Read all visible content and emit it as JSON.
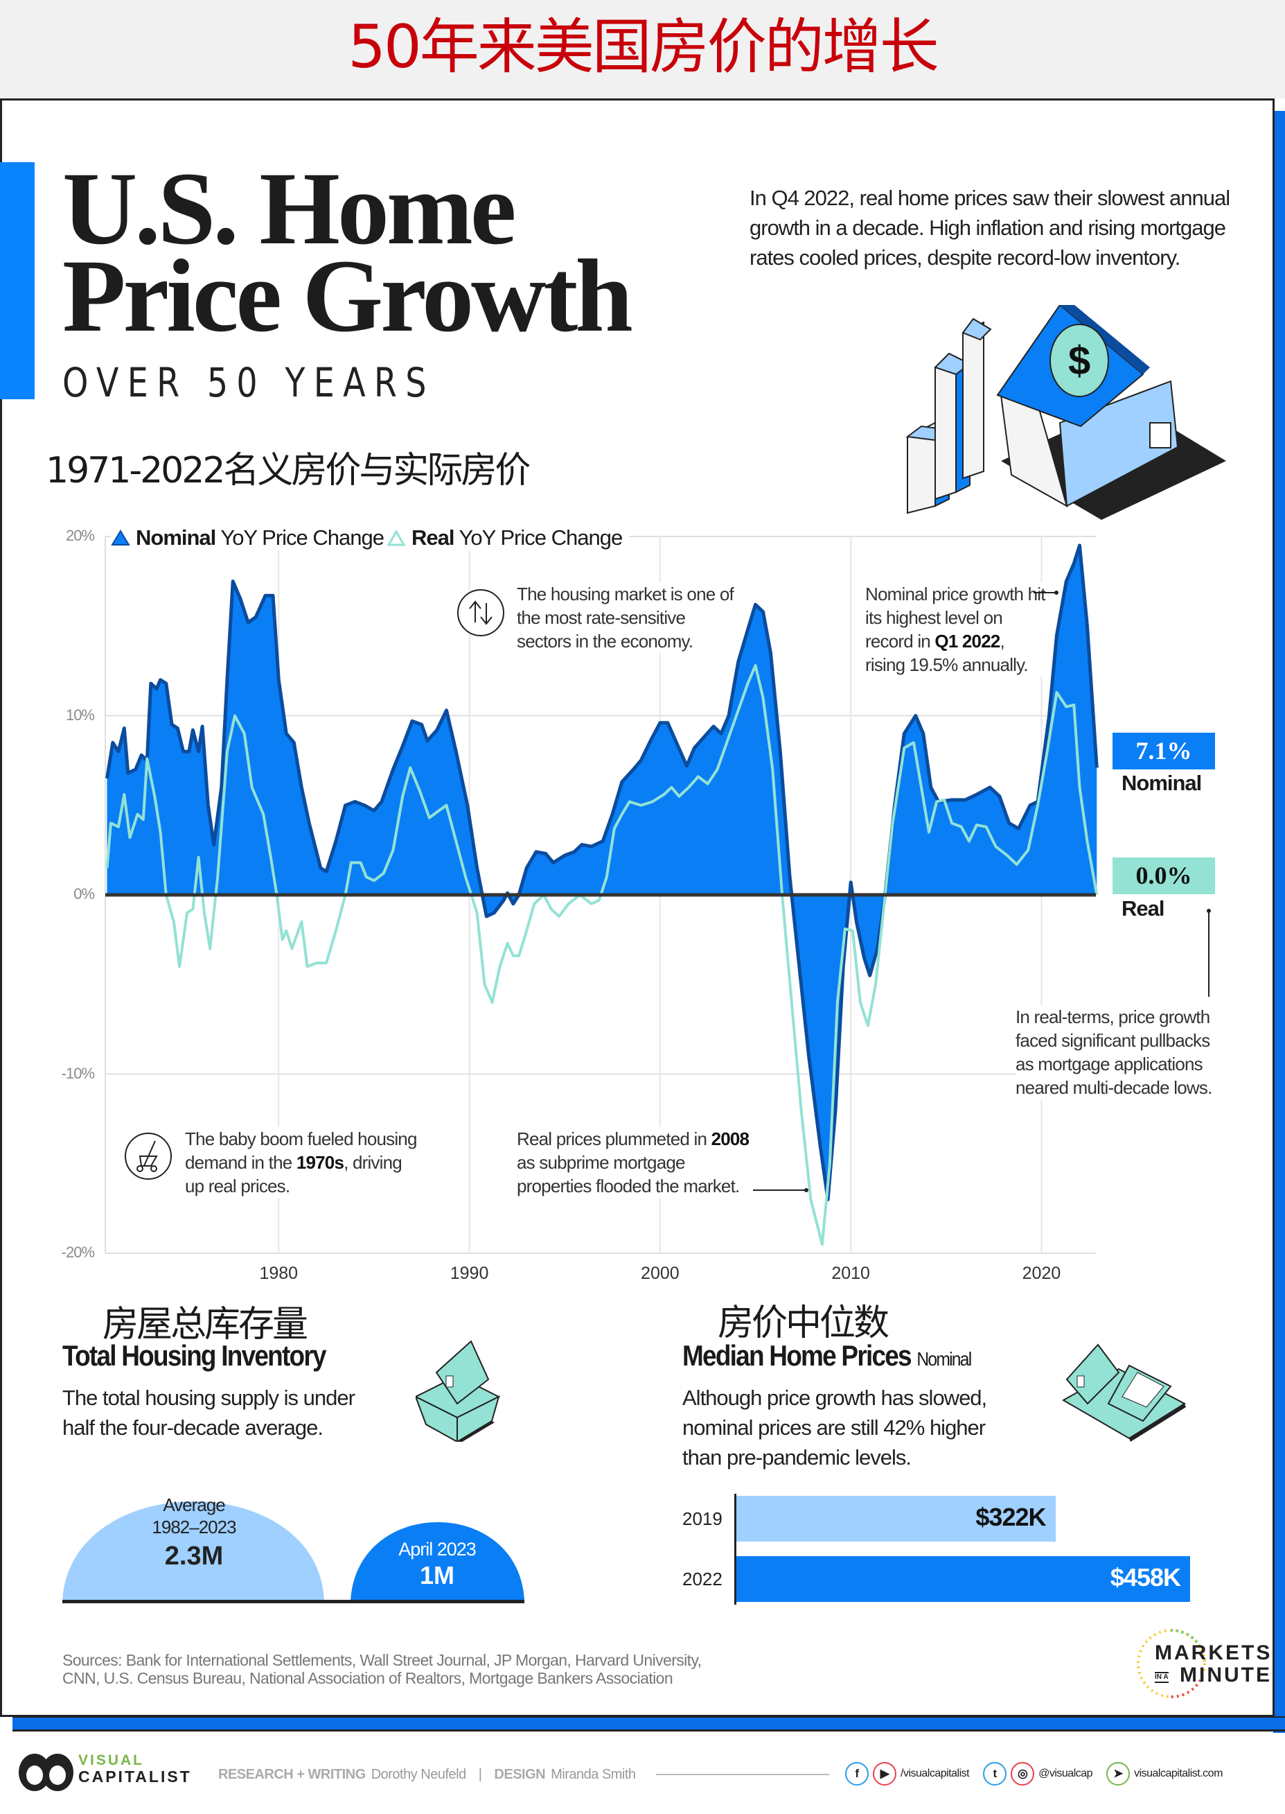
{
  "banner_title": "50年来美国房价的增长",
  "header": {
    "title_line1": "U.S. Home",
    "title_line2": "Price Growth",
    "subtitle": "OVER 50 YEARS",
    "chinese_subtitle": "1971-2022名义房价与实际房价",
    "intro": "In Q4 2022, real home prices saw their slowest annual growth in a decade. High inflation and rising mortgage rates cooled prices, despite record-low inventory."
  },
  "colors": {
    "nominal_fill": "#0a7ef5",
    "nominal_stroke": "#0b4c9e",
    "real": "#93e2d4",
    "accent": "#0a84ff",
    "banner_red": "#c8000a"
  },
  "chart_data": {
    "type": "area",
    "legend": [
      {
        "bold": "Nominal",
        "rest": "YoY Price Change"
      },
      {
        "bold": "Real",
        "rest": "YoY Price Change"
      }
    ],
    "legend_position": "top-left",
    "y_ticks": [
      "20%",
      "10%",
      "0%",
      "-10%",
      "-20%"
    ],
    "y_tick_values": [
      20,
      10,
      0,
      -10,
      -20
    ],
    "ylim": [
      -20,
      20
    ],
    "x_ticks": [
      "1980",
      "1990",
      "2000",
      "2010",
      "2020"
    ],
    "x_tick_values": [
      1980,
      1990,
      2000,
      2010,
      2020
    ],
    "xlim": [
      1971,
      2022.9
    ],
    "grid": true,
    "series": [
      {
        "name": "Nominal",
        "points": [
          [
            1971,
            6.5
          ],
          [
            1971.3,
            8.5
          ],
          [
            1971.6,
            8
          ],
          [
            1971.9,
            9.3
          ],
          [
            1972.1,
            6.8
          ],
          [
            1972.5,
            7
          ],
          [
            1972.8,
            7.8
          ],
          [
            1973.1,
            7.5
          ],
          [
            1973.3,
            11.8
          ],
          [
            1973.6,
            11.5
          ],
          [
            1973.8,
            12
          ],
          [
            1974.1,
            11.8
          ],
          [
            1974.4,
            9.5
          ],
          [
            1974.7,
            9.3
          ],
          [
            1975,
            8
          ],
          [
            1975.3,
            8
          ],
          [
            1975.5,
            9.2
          ],
          [
            1975.8,
            8
          ],
          [
            1976,
            9.4
          ],
          [
            1976.3,
            5
          ],
          [
            1976.6,
            2.8
          ],
          [
            1977,
            6
          ],
          [
            1977.3,
            12
          ],
          [
            1977.6,
            17.5
          ],
          [
            1978,
            16.5
          ],
          [
            1978.4,
            15.2
          ],
          [
            1978.8,
            15.5
          ],
          [
            1979.3,
            16.7
          ],
          [
            1979.7,
            16.7
          ],
          [
            1980,
            12
          ],
          [
            1980.4,
            9
          ],
          [
            1980.8,
            8.5
          ],
          [
            1981.2,
            6
          ],
          [
            1981.6,
            4
          ],
          [
            1982.2,
            1.5
          ],
          [
            1982.5,
            1.3
          ],
          [
            1983,
            3
          ],
          [
            1983.5,
            5
          ],
          [
            1984,
            5.2
          ],
          [
            1984.5,
            5
          ],
          [
            1985,
            4.7
          ],
          [
            1985.4,
            5.2
          ],
          [
            1986,
            7
          ],
          [
            1986.5,
            8.3
          ],
          [
            1987,
            9.7
          ],
          [
            1987.5,
            9.5
          ],
          [
            1987.8,
            8.6
          ],
          [
            1988.3,
            9.2
          ],
          [
            1988.8,
            10.3
          ],
          [
            1989.3,
            8
          ],
          [
            1989.9,
            5
          ],
          [
            1990.4,
            1.5
          ],
          [
            1990.9,
            -1.2
          ],
          [
            1991.3,
            -1
          ],
          [
            1991.8,
            -0.3
          ],
          [
            1992,
            0.1
          ],
          [
            1992.3,
            -0.5
          ],
          [
            1992.6,
            0
          ],
          [
            1993,
            1.5
          ],
          [
            1993.5,
            2.4
          ],
          [
            1994,
            2.3
          ],
          [
            1994.4,
            1.8
          ],
          [
            1995,
            2.2
          ],
          [
            1995.5,
            2.4
          ],
          [
            1995.9,
            2.8
          ],
          [
            1996.4,
            2.7
          ],
          [
            1997,
            3
          ],
          [
            1997.5,
            4.5
          ],
          [
            1998,
            6.3
          ],
          [
            1998.6,
            7
          ],
          [
            1999,
            7.5
          ],
          [
            1999.5,
            8.6
          ],
          [
            2000,
            9.6
          ],
          [
            2000.4,
            9.6
          ],
          [
            2000.9,
            8.4
          ],
          [
            2001.4,
            7.2
          ],
          [
            2001.8,
            8.2
          ],
          [
            2002.3,
            8.8
          ],
          [
            2002.8,
            9.4
          ],
          [
            2003.2,
            9
          ],
          [
            2003.6,
            10
          ],
          [
            2004.1,
            13
          ],
          [
            2004.6,
            14.8
          ],
          [
            2005,
            16.2
          ],
          [
            2005.4,
            15.8
          ],
          [
            2005.8,
            13.5
          ],
          [
            2006.3,
            8
          ],
          [
            2006.8,
            1
          ],
          [
            2007.3,
            -4
          ],
          [
            2007.8,
            -9
          ],
          [
            2008.4,
            -14
          ],
          [
            2008.8,
            -17
          ],
          [
            2009.2,
            -12
          ],
          [
            2009.6,
            -4
          ],
          [
            2010,
            0.7
          ],
          [
            2010.3,
            -1.5
          ],
          [
            2010.7,
            -3.5
          ],
          [
            2011,
            -4.5
          ],
          [
            2011.4,
            -3
          ],
          [
            2011.8,
            0
          ],
          [
            2012.3,
            5
          ],
          [
            2012.8,
            9
          ],
          [
            2013.4,
            10
          ],
          [
            2013.8,
            9
          ],
          [
            2014.2,
            6
          ],
          [
            2014.6,
            5.2
          ],
          [
            2015.3,
            5.3
          ],
          [
            2016,
            5.3
          ],
          [
            2016.6,
            5.6
          ],
          [
            2017.3,
            6
          ],
          [
            2017.8,
            5.5
          ],
          [
            2018.3,
            4
          ],
          [
            2018.8,
            3.7
          ],
          [
            2019.4,
            5
          ],
          [
            2019.8,
            5.2
          ],
          [
            2020.4,
            10
          ],
          [
            2020.8,
            14.5
          ],
          [
            2021.3,
            17.5
          ],
          [
            2021.7,
            18.5
          ],
          [
            2022,
            19.5
          ],
          [
            2022.4,
            15
          ],
          [
            2022.9,
            7.1
          ]
        ]
      },
      {
        "name": "Real",
        "points": [
          [
            1971,
            1.5
          ],
          [
            1971.2,
            4
          ],
          [
            1971.6,
            3.8
          ],
          [
            1971.9,
            5.6
          ],
          [
            1972.2,
            3.2
          ],
          [
            1972.6,
            4.5
          ],
          [
            1972.9,
            4.2
          ],
          [
            1973.1,
            7.6
          ],
          [
            1973.5,
            5.5
          ],
          [
            1973.8,
            3.5
          ],
          [
            1974.1,
            0
          ],
          [
            1974.5,
            -1.5
          ],
          [
            1974.8,
            -4
          ],
          [
            1975.2,
            -1
          ],
          [
            1975.5,
            -0.8
          ],
          [
            1975.8,
            2.1
          ],
          [
            1976.1,
            -1
          ],
          [
            1976.4,
            -3
          ],
          [
            1976.8,
            1
          ],
          [
            1977.3,
            8
          ],
          [
            1977.7,
            10
          ],
          [
            1978.2,
            9
          ],
          [
            1978.6,
            6
          ],
          [
            1979.2,
            4.5
          ],
          [
            1979.6,
            2
          ],
          [
            1979.9,
            0
          ],
          [
            1980.2,
            -2.5
          ],
          [
            1980.4,
            -2
          ],
          [
            1980.7,
            -3
          ],
          [
            1981.2,
            -1.5
          ],
          [
            1981.5,
            -4
          ],
          [
            1982,
            -3.8
          ],
          [
            1982.5,
            -3.8
          ],
          [
            1983,
            -2
          ],
          [
            1983.5,
            0
          ],
          [
            1983.8,
            1.8
          ],
          [
            1984.3,
            1.8
          ],
          [
            1984.6,
            1
          ],
          [
            1985,
            0.8
          ],
          [
            1985.5,
            1.2
          ],
          [
            1986,
            2.5
          ],
          [
            1986.5,
            5.5
          ],
          [
            1986.9,
            7.1
          ],
          [
            1987.4,
            5.8
          ],
          [
            1987.9,
            4.3
          ],
          [
            1988.4,
            4.7
          ],
          [
            1988.8,
            5
          ],
          [
            1989.3,
            3
          ],
          [
            1989.8,
            1
          ],
          [
            1990.4,
            -1
          ],
          [
            1990.8,
            -5
          ],
          [
            1991.2,
            -6
          ],
          [
            1991.6,
            -4
          ],
          [
            1992,
            -2.7
          ],
          [
            1992.3,
            -3.4
          ],
          [
            1992.6,
            -3.4
          ],
          [
            1993,
            -2
          ],
          [
            1993.4,
            -0.5
          ],
          [
            1993.9,
            0
          ],
          [
            1994.3,
            -0.8
          ],
          [
            1994.7,
            -1.2
          ],
          [
            1995.2,
            -0.5
          ],
          [
            1995.8,
            0
          ],
          [
            1996.4,
            -0.5
          ],
          [
            1996.8,
            -0.3
          ],
          [
            1997.2,
            1
          ],
          [
            1997.6,
            3.7
          ],
          [
            1998,
            4.5
          ],
          [
            1998.4,
            5.2
          ],
          [
            1999,
            5
          ],
          [
            1999.6,
            5.2
          ],
          [
            2000.2,
            5.6
          ],
          [
            2000.6,
            6
          ],
          [
            2001,
            5.5
          ],
          [
            2001.5,
            6
          ],
          [
            2002,
            6.6
          ],
          [
            2002.5,
            6.2
          ],
          [
            2003,
            7
          ],
          [
            2003.5,
            8.5
          ],
          [
            2004,
            10
          ],
          [
            2004.6,
            11.8
          ],
          [
            2005,
            12.8
          ],
          [
            2005.4,
            11
          ],
          [
            2005.9,
            7
          ],
          [
            2006.4,
            0
          ],
          [
            2006.9,
            -6
          ],
          [
            2007.4,
            -12
          ],
          [
            2007.9,
            -17
          ],
          [
            2008.5,
            -19.5
          ],
          [
            2008.9,
            -15
          ],
          [
            2009.3,
            -6
          ],
          [
            2009.7,
            -1.9
          ],
          [
            2010.1,
            -2
          ],
          [
            2010.5,
            -6
          ],
          [
            2010.9,
            -7.3
          ],
          [
            2011.3,
            -5
          ],
          [
            2011.7,
            -1
          ],
          [
            2012.2,
            4
          ],
          [
            2012.8,
            8.2
          ],
          [
            2013.3,
            8.5
          ],
          [
            2013.7,
            6
          ],
          [
            2014.1,
            3.5
          ],
          [
            2014.5,
            5.2
          ],
          [
            2014.9,
            5.3
          ],
          [
            2015.3,
            4
          ],
          [
            2015.8,
            3.8
          ],
          [
            2016.2,
            3
          ],
          [
            2016.6,
            3.9
          ],
          [
            2017.1,
            3.8
          ],
          [
            2017.6,
            2.7
          ],
          [
            2018.2,
            2.2
          ],
          [
            2018.7,
            1.7
          ],
          [
            2019.3,
            2.5
          ],
          [
            2019.8,
            5
          ],
          [
            2020.3,
            8
          ],
          [
            2020.8,
            11.3
          ],
          [
            2021.3,
            10.5
          ],
          [
            2021.7,
            10.6
          ],
          [
            2022,
            6
          ],
          [
            2022.4,
            3
          ],
          [
            2022.9,
            0
          ]
        ]
      }
    ],
    "end_labels": [
      {
        "value": "7.1%",
        "label": "Nominal"
      },
      {
        "value": "0.0%",
        "label": "Real"
      }
    ],
    "annotations": {
      "rate": "The housing market is one of the most rate-sensitive sectors in the economy.",
      "peak_pre": "Nominal price growth hit its highest level on record in ",
      "peak_bold": "Q1 2022",
      "peak_post": ", rising 19.5% annually.",
      "pullback": "In real-terms, price growth faced significant pullbacks as mortgage applications neared multi-decade lows.",
      "boom_pre": "The baby boom fueled housing demand in the ",
      "boom_bold": "1970s",
      "boom_post": ", driving up real prices.",
      "crash_pre": "Real prices plummeted in ",
      "crash_bold": "2008",
      "crash_post": " as subprime mortgage properties flooded the market."
    }
  },
  "inventory": {
    "title_cn": "房屋总库存量",
    "title": "Total Housing Inventory",
    "desc": "The total housing supply is under half the four-decade average.",
    "average_label": "Average",
    "average_range": "1982–2023",
    "average_value": "2.3M",
    "average_millions": 2.3,
    "current_label": "April 2023",
    "current_value": "1M",
    "current_millions": 1
  },
  "median": {
    "title_cn": "房价中位数",
    "title": "Median Home Prices",
    "title_note": "Nominal",
    "desc": "Although price growth has slowed, nominal prices are still 42% higher than pre-pandemic levels.",
    "bars": [
      {
        "year": "2019",
        "label": "$322K",
        "value": 322
      },
      {
        "year": "2022",
        "label": "$458K",
        "value": 458
      }
    ]
  },
  "sources": "Sources: Bank for International Settlements, Wall Street Journal, JP Morgan, Harvard University, CNN, U.S. Census Bureau, National Association of Realtors, Mortgage Bankers Association",
  "mim_logo": {
    "line1": "MARKETS",
    "in_a": "IN A",
    "line2": "MINUTE"
  },
  "footer": {
    "logo_top": "VISUAL",
    "logo_bottom": "CAPITALIST",
    "research_label": "RESEARCH + WRITING",
    "research_name": "Dorothy Neufeld",
    "sep": "|",
    "design_label": "DESIGN",
    "design_name": "Miranda Smith",
    "handle1": "/visualcapitalist",
    "handle2": "@visualcap",
    "website": "visualcapitalist.com"
  }
}
